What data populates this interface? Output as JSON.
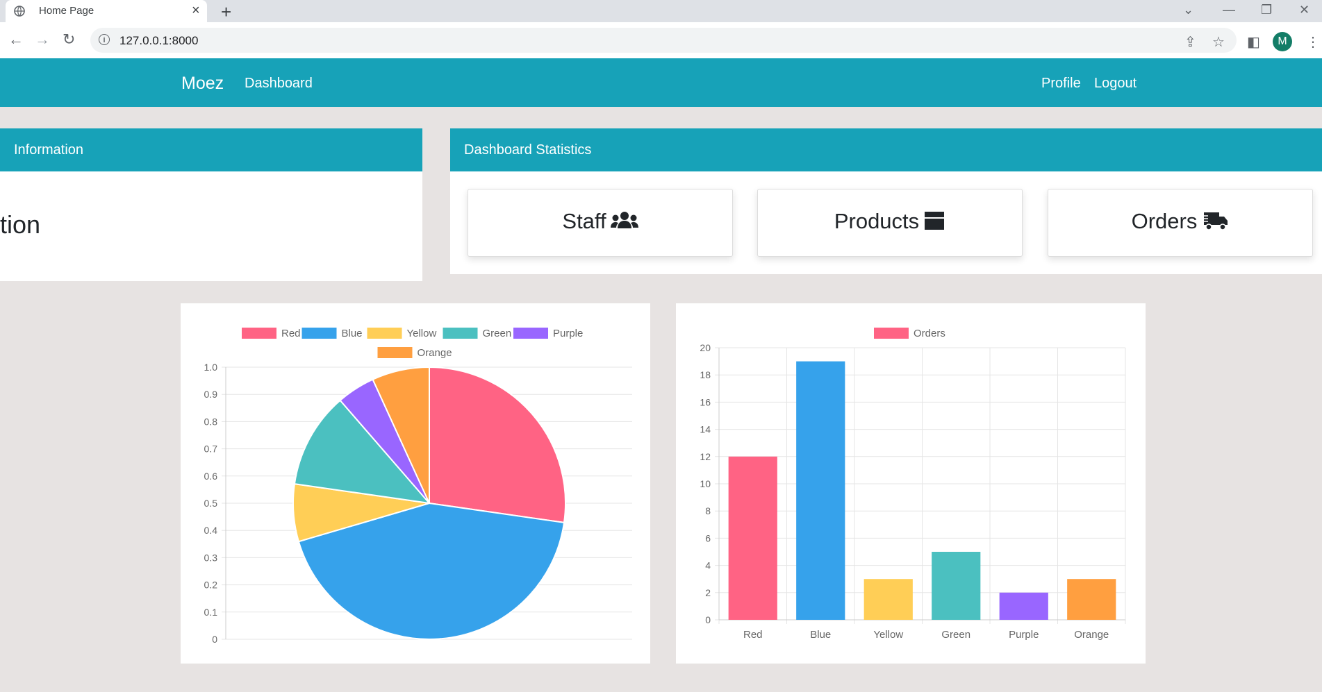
{
  "browser": {
    "tab_title": "Home Page",
    "url": "127.0.0.1:8000",
    "avatar_letter": "M"
  },
  "navbar": {
    "brand": "Moez",
    "links": [
      "Dashboard"
    ],
    "right_links": [
      "Profile",
      "Logout"
    ]
  },
  "info_card": {
    "header": "Information",
    "body_text": "ation"
  },
  "stats_card": {
    "header": "Dashboard Statistics",
    "items": [
      {
        "label": "Staff",
        "icon": "users-icon"
      },
      {
        "label": "Products",
        "icon": "box-icon"
      },
      {
        "label": "Orders",
        "icon": "truck-icon"
      }
    ]
  },
  "colors": {
    "navbar": "#17a2b8",
    "Red": "#ff6384",
    "Blue": "#36a2eb",
    "Yellow": "#ffce56",
    "Green": "#4bc0c0",
    "Purple": "#9966ff",
    "Orange": "#ff9f40"
  },
  "chart_data": [
    {
      "type": "pie",
      "legend": [
        "Red",
        "Blue",
        "Yellow",
        "Green",
        "Purple",
        "Orange"
      ],
      "values": [
        12,
        19,
        3,
        5,
        2,
        3
      ],
      "yticks": [
        "0",
        "0.1",
        "0.2",
        "0.3",
        "0.4",
        "0.5",
        "0.6",
        "0.7",
        "0.8",
        "0.9",
        "1.0"
      ],
      "legend_position": "top"
    },
    {
      "type": "bar",
      "series_name": "Orders",
      "categories": [
        "Red",
        "Blue",
        "Yellow",
        "Green",
        "Purple",
        "Orange"
      ],
      "values": [
        12,
        19,
        3,
        5,
        2,
        3
      ],
      "ylim": [
        0,
        20
      ],
      "yticks": [
        "0",
        "2",
        "4",
        "6",
        "8",
        "10",
        "12",
        "14",
        "16",
        "18",
        "20"
      ],
      "legend_position": "top"
    }
  ]
}
